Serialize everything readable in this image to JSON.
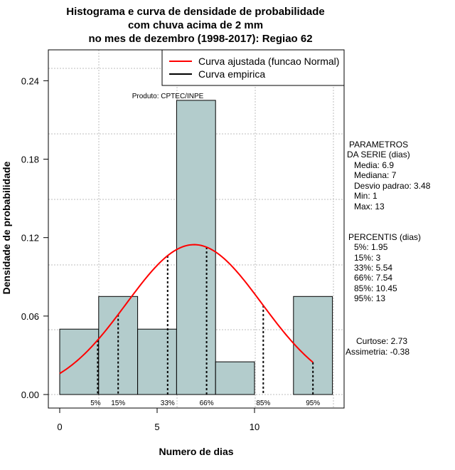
{
  "title_lines": [
    "Histograma e curva de densidade de probabilidade",
    "com chuva acima de 2 mm",
    "no mes de dezembro (1998-2017): Regiao 62"
  ],
  "xlabel": "Numero de dias",
  "ylabel": "Densidade de probabilidade",
  "produto": "Produto: CPTEC/INPE",
  "legend": {
    "fitted": "Curva ajustada (funcao Normal)",
    "empirical": "Curva empirica"
  },
  "parametros": {
    "title1": "PARAMETROS",
    "title2": "DA SERIE (dias)",
    "lines": [
      "Media: 6.9",
      "Mediana: 7",
      "Desvio padrao: 3.48",
      "Min: 1",
      "Max: 13"
    ]
  },
  "percentis": {
    "title": "PERCENTIS (dias)",
    "lines": [
      "5%: 1.95",
      "15%: 3",
      "33%: 5.54",
      "66%: 7.54",
      "85%: 10.45",
      "95%: 13"
    ]
  },
  "stats": {
    "curtose": "Curtose: 2.73",
    "assimetria": "Assimetria: -0.38"
  },
  "colors": {
    "bar_fill": "#b3cccc",
    "fitted_curve": "#ff0000",
    "grid": "#bebebe"
  },
  "chart_data": {
    "type": "histogram",
    "bins": [
      {
        "x0": 0,
        "x1": 2,
        "density": 0.05
      },
      {
        "x0": 2,
        "x1": 4,
        "density": 0.075
      },
      {
        "x0": 4,
        "x1": 6,
        "density": 0.05
      },
      {
        "x0": 6,
        "x1": 8,
        "density": 0.225
      },
      {
        "x0": 8,
        "x1": 10,
        "density": 0.025
      },
      {
        "x0": 10,
        "x1": 12,
        "density": 0
      },
      {
        "x0": 12,
        "x1": 14,
        "density": 0.075
      }
    ],
    "fitted_normal": {
      "mean": 6.9,
      "sd": 3.48,
      "from": 0,
      "to": 13
    },
    "percentiles": [
      {
        "label": "5%",
        "value": 1.95
      },
      {
        "label": "15%",
        "value": 3
      },
      {
        "label": "33%",
        "value": 5.54
      },
      {
        "label": "66%",
        "value": 7.54
      },
      {
        "label": "85%",
        "value": 10.45
      },
      {
        "label": "95%",
        "value": 13
      }
    ],
    "x_ticks": [
      0,
      5,
      10
    ],
    "y_ticks": [
      "0.00",
      "0.06",
      "0.12",
      "0.18",
      "0.24"
    ],
    "xlim": [
      -0.7,
      14.7
    ],
    "ylim": [
      0,
      0.2625
    ]
  }
}
